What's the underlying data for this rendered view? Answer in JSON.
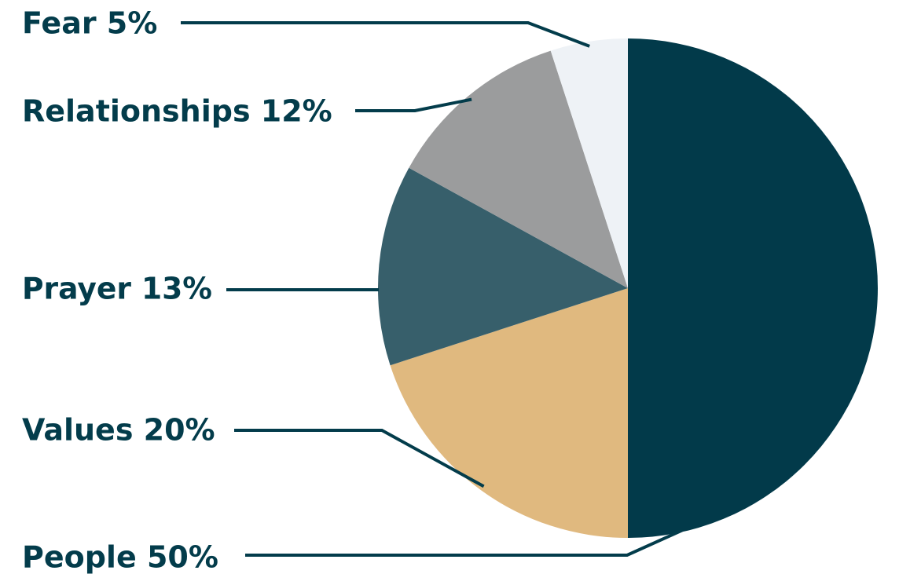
{
  "chart_data": {
    "type": "pie",
    "title": "",
    "slices": [
      {
        "name": "People",
        "value": 50,
        "label": "People 50%",
        "color": "#023a4a"
      },
      {
        "name": "Values",
        "value": 20,
        "label": "Values 20%",
        "color": "#e0b97f"
      },
      {
        "name": "Prayer",
        "value": 13,
        "label": "Prayer 13%",
        "color": "#375f6b"
      },
      {
        "name": "Relationships",
        "value": 12,
        "label": "Relationships 12%",
        "color": "#9b9c9d"
      },
      {
        "name": "Fear",
        "value": 5,
        "label": "Fear 5%",
        "color": "#eef2f6"
      }
    ],
    "label_color": "#033c4b",
    "leader_line_color": "#033c4b",
    "start": "12 o'clock",
    "direction": "clockwise"
  }
}
